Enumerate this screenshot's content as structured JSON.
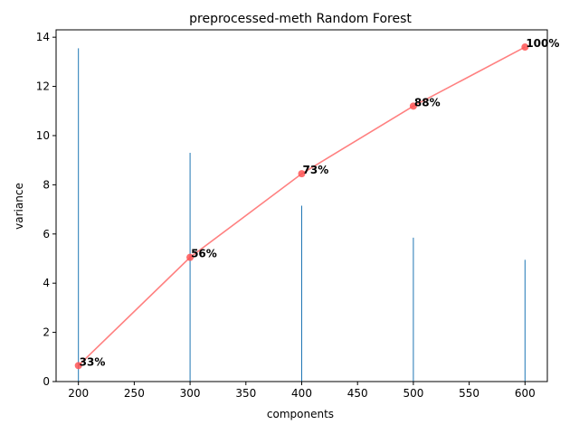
{
  "chart_data": {
    "type": "bar",
    "title": "preprocessed-meth Random Forest",
    "xlabel": "components",
    "ylabel": "variance",
    "x": [
      200,
      300,
      400,
      500,
      600
    ],
    "xlim": [
      180,
      620
    ],
    "ylim": [
      0,
      14.3
    ],
    "xticks": [
      200,
      250,
      300,
      350,
      400,
      450,
      500,
      550,
      600
    ],
    "yticks": [
      0,
      2,
      4,
      6,
      8,
      10,
      12,
      14
    ],
    "grid": false,
    "series": [
      {
        "kind": "bar",
        "color": "#1f77b4",
        "values": [
          13.55,
          9.3,
          7.15,
          5.85,
          4.95
        ]
      },
      {
        "kind": "line",
        "color": "#ff5555",
        "values": [
          0.65,
          5.05,
          8.45,
          11.2,
          13.6
        ],
        "labels": [
          "33%",
          "56%",
          "73%",
          "88%",
          "100%"
        ]
      }
    ]
  }
}
